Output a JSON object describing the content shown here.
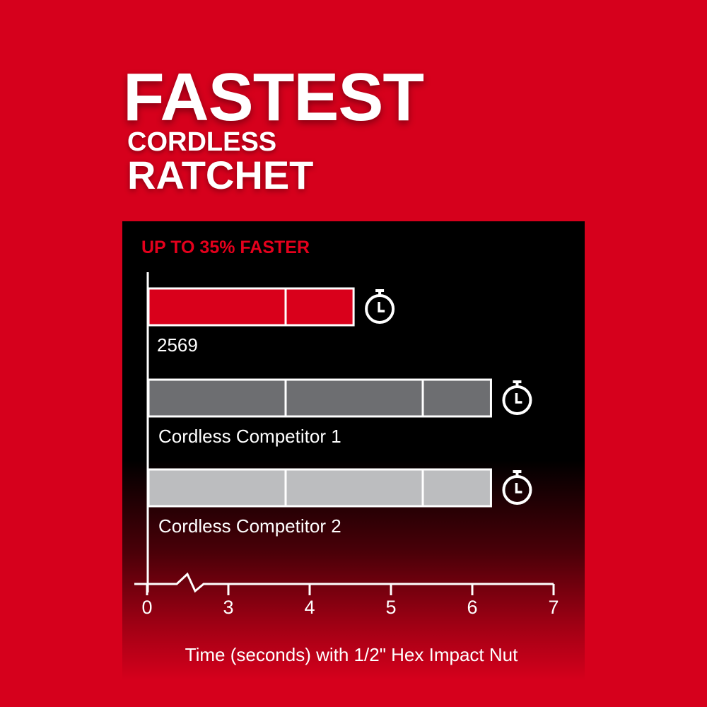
{
  "headline": {
    "line1": "FASTEST",
    "line2": "CORDLESS",
    "line3": "RATCHET"
  },
  "chart_data": {
    "type": "bar",
    "orientation": "horizontal",
    "title": "UP TO 35% FASTER",
    "xlabel": "Time (seconds) with 1/2\" Hex Impact Nut",
    "ylabel": "",
    "xlim": [
      0,
      7
    ],
    "axis_break": [
      0,
      3
    ],
    "xticks": [
      "0",
      "3",
      "4",
      "5",
      "6",
      "7"
    ],
    "grid": false,
    "categories": [
      "2569",
      "Cordless Competitor 1",
      "Cordless Competitor 2"
    ],
    "values": [
      4.54,
      6.23,
      6.23
    ],
    "colors": [
      "#d9001b",
      "#6d6e71",
      "#bcbdbf"
    ],
    "icon": "stopwatch-icon"
  },
  "colors": {
    "background": "#d6001c",
    "panel": "#000000",
    "accent": "#e4001c"
  }
}
